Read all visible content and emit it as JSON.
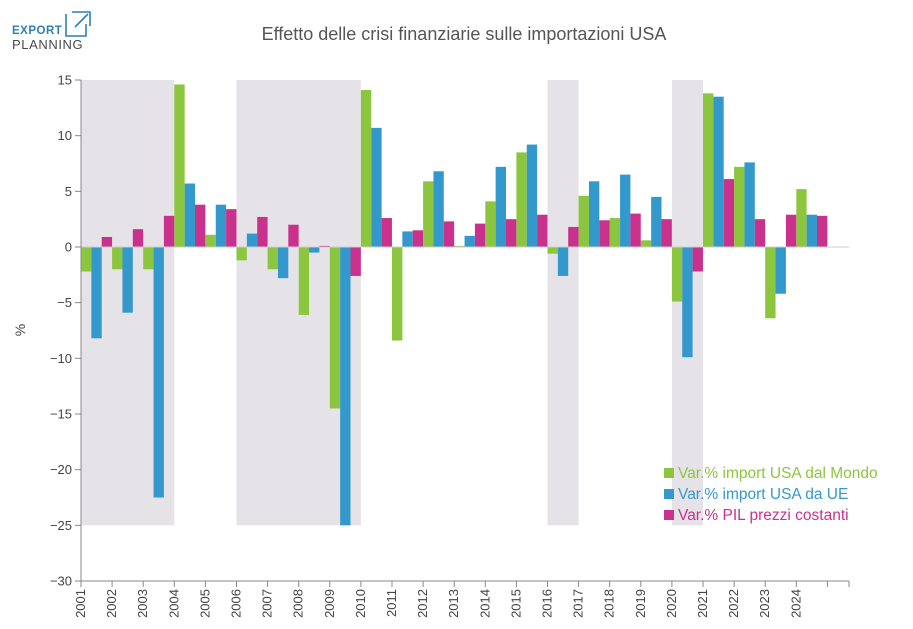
{
  "logo": {
    "line1": "EXPORT",
    "line2": "PLANNING",
    "line1_color": "#2f7fb5",
    "line2_color": "#4a4a4a",
    "mark_color": "#2f7fb5"
  },
  "chart_data": {
    "type": "bar",
    "title": "Effetto delle crisi finanziarie sulle importazioni USA",
    "xlabel": "",
    "ylabel": "%",
    "ylim": [
      -30,
      15
    ],
    "yticks": [
      15,
      10,
      5,
      0,
      -5,
      -10,
      -15,
      -20,
      -25,
      -30
    ],
    "ytick_labels": [
      "15",
      "10",
      "5",
      "0",
      "−5",
      "−10",
      "−15",
      "−20",
      "−25",
      "−30"
    ],
    "grid": false,
    "legend_position": "bottom-right",
    "categories": [
      "2001",
      "2002",
      "2003",
      "2004",
      "2005",
      "2006",
      "2007",
      "2008",
      "2009",
      "2010",
      "2011",
      "2012",
      "2013",
      "2014",
      "2015",
      "2016",
      "2017",
      "2018",
      "2019",
      "2020",
      "2021",
      "2022",
      "2023",
      "2024"
    ],
    "series": [
      {
        "name": "Var.% import USA dal Mondo",
        "color": "#8cc63f",
        "values": [
          -2.2,
          -2.0,
          -2.0,
          14.6,
          1.1,
          -1.2,
          -2.0,
          -6.1,
          -14.5,
          14.1,
          -8.4,
          5.9,
          0.1,
          4.1,
          8.5,
          -0.6,
          4.6,
          2.6,
          0.6,
          -4.9,
          13.8,
          7.2,
          -6.4,
          5.2
        ]
      },
      {
        "name": "Var.% import USA da UE",
        "color": "#3399cc",
        "values": [
          -8.2,
          -5.9,
          -22.5,
          5.7,
          3.8,
          1.2,
          -2.8,
          -0.5,
          -25.0,
          10.7,
          1.4,
          6.8,
          1.0,
          7.2,
          9.2,
          -2.6,
          5.9,
          6.5,
          4.5,
          -9.9,
          13.5,
          7.6,
          -4.2,
          2.9
        ]
      },
      {
        "name": "Var.% PIL prezzi costanti",
        "color": "#c9318c",
        "values": [
          0.9,
          1.6,
          2.8,
          3.8,
          3.4,
          2.7,
          2.0,
          0.1,
          -2.6,
          2.6,
          1.5,
          2.3,
          2.1,
          2.5,
          2.9,
          1.8,
          2.4,
          3.0,
          2.5,
          -2.2,
          6.1,
          2.5,
          2.9,
          2.8
        ]
      }
    ],
    "shaded_periods": [
      {
        "from": "2001",
        "to": "2003"
      },
      {
        "from": "2006",
        "to": "2009"
      },
      {
        "from": "2016",
        "to": "2016"
      },
      {
        "from": "2020",
        "to": "2020"
      }
    ],
    "shading_color": "#e6e3e8",
    "axis_color": "#888888"
  }
}
